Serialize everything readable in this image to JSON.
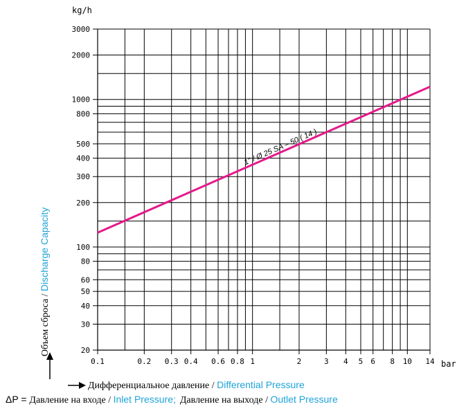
{
  "colors": {
    "accent": "#1fa3d8",
    "series": "#e5198a",
    "grid": "#000000"
  },
  "chart_data": {
    "type": "line",
    "x_scale": "log",
    "y_scale": "log",
    "xlim": [
      0.1,
      14
    ],
    "ylim": [
      20,
      3000
    ],
    "grid": true,
    "x_ticks": [
      0.1,
      0.2,
      0.3,
      0.4,
      0.6,
      0.8,
      1,
      2,
      3,
      4,
      5,
      6,
      8,
      10,
      14
    ],
    "x_tick_labels": [
      "0.1",
      "0.2",
      "0.3",
      "0.4",
      "0.6",
      "0.8",
      "1",
      "2",
      "3",
      "4",
      "5",
      "6",
      "8",
      "10",
      "14"
    ],
    "x_grid": [
      0.15,
      0.2,
      0.3,
      0.4,
      0.5,
      0.6,
      0.7,
      0.8,
      0.9,
      1,
      1.5,
      2,
      3,
      4,
      5,
      6,
      7,
      8,
      9,
      10
    ],
    "y_ticks": [
      20,
      30,
      40,
      50,
      60,
      80,
      100,
      200,
      300,
      400,
      500,
      800,
      1000,
      2000,
      3000
    ],
    "y_tick_labels": [
      "20",
      "30",
      "40",
      "50",
      "60",
      "80",
      "100",
      "200",
      "300",
      "400",
      "500",
      "800",
      "1000",
      "2000",
      "3000"
    ],
    "y_grid": [
      30,
      40,
      50,
      60,
      70,
      80,
      90,
      100,
      150,
      200,
      300,
      400,
      500,
      600,
      700,
      800,
      900,
      1000,
      1500,
      2000
    ],
    "x_unit": "bar",
    "y_unit": "kg/h",
    "series": [
      {
        "name": "1\" / Ø 25 SA – 50 ( 14 )",
        "x": [
          0.1,
          14
        ],
        "y": [
          125,
          1220
        ]
      }
    ]
  },
  "labels": {
    "ylabel_ru": "Объем сброса / ",
    "ylabel_en": "Discharge Capacity",
    "xlabel_ru": "Дифференциальное давление / ",
    "xlabel_en": "Differential Pressure",
    "dp_prefix": "ΔP = ",
    "inlet_ru": "Давление на входе / ",
    "inlet_en": "Inlet Pressure;",
    "outlet_ru": "Давление на выходе / ",
    "outlet_en": "Outlet Pressure"
  }
}
